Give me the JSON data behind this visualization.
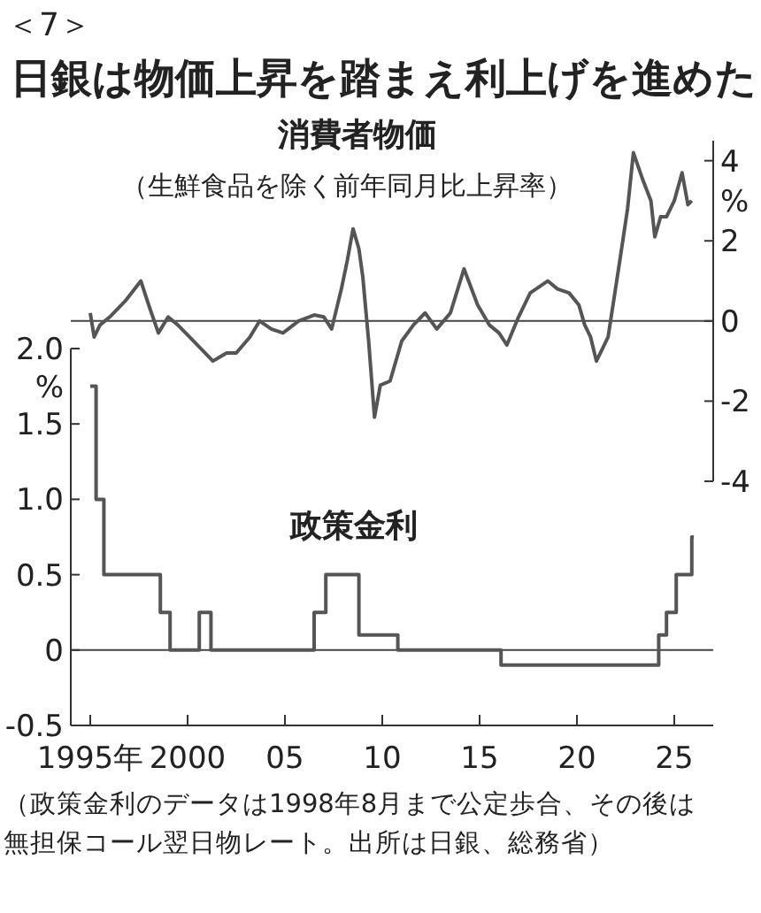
{
  "chart_data": [
    {
      "type": "line",
      "title": "日銀は物価上昇を踏まえ利上げを進めた",
      "subtitle": "消費者物価",
      "annotations": [
        "＜7＞",
        "（生鮮食品を除く前年同月比上昇率）"
      ],
      "ylabel": "%",
      "xlim": [
        1994,
        2027
      ],
      "ylim": [
        -4,
        4.5
      ],
      "yticks": [
        -4,
        -2,
        0,
        2,
        4
      ],
      "tick_labels": "y",
      "ref_lines": [
        {
          "axis": "y",
          "value": 0
        }
      ],
      "series": [
        {
          "color": "#555555",
          "x": [
            1995.0,
            1995.2,
            1995.5,
            1996.0,
            1996.8,
            1997.6,
            1998.0,
            1998.5,
            1999.0,
            1999.5,
            2000.3,
            2001.3,
            2002.0,
            2002.5,
            2003.2,
            2003.7,
            2004.3,
            2004.9,
            2005.7,
            2006.5,
            2007.0,
            2007.4,
            2007.9,
            2008.2,
            2008.5,
            2008.8,
            2009.0,
            2009.3,
            2009.6,
            2009.9,
            2010.4,
            2011.0,
            2011.6,
            2012.2,
            2012.8,
            2013.5,
            2014.2,
            2014.9,
            2015.5,
            2016.0,
            2016.4,
            2017.0,
            2017.6,
            2018.5,
            2019.0,
            2019.6,
            2020.1,
            2020.4,
            2020.7,
            2021.0,
            2021.3,
            2021.6,
            2022.2,
            2022.6,
            2022.9,
            2023.4,
            2023.8,
            2024.0,
            2024.3,
            2024.6,
            2025.0,
            2025.4,
            2025.7,
            2025.9
          ],
          "values": [
            0.2,
            -0.4,
            -0.1,
            0.1,
            0.5,
            1.0,
            0.4,
            -0.3,
            0.1,
            -0.1,
            -0.5,
            -1.0,
            -0.8,
            -0.8,
            -0.4,
            0.0,
            -0.2,
            -0.3,
            0.0,
            0.15,
            0.1,
            -0.2,
            0.8,
            1.5,
            2.3,
            1.8,
            1.1,
            -0.5,
            -2.4,
            -1.6,
            -1.5,
            -0.5,
            -0.1,
            0.2,
            -0.2,
            0.2,
            1.3,
            0.4,
            -0.1,
            -0.3,
            -0.6,
            0.1,
            0.7,
            1.0,
            0.8,
            0.7,
            0.4,
            -0.1,
            -0.4,
            -1.0,
            -0.7,
            -0.4,
            1.5,
            2.8,
            4.2,
            3.5,
            3.0,
            2.1,
            2.6,
            2.6,
            3.0,
            3.7,
            2.9,
            3.0
          ]
        }
      ]
    },
    {
      "type": "step",
      "title": "政策金利",
      "annotations": [
        "（政策金利のデータは1998年8月まで公定歩合、その後は無担保コール翌日物レート。出所は日銀、総務省）"
      ],
      "ylabel": "%",
      "xlim": [
        1994,
        2027
      ],
      "ylim": [
        -0.5,
        2.0
      ],
      "xticks": [
        {
          "value": 1995,
          "label": "1995年"
        },
        2000,
        {
          "value": 2005,
          "label": "05"
        },
        {
          "value": 2010,
          "label": "10"
        },
        {
          "value": 2015,
          "label": "15"
        },
        {
          "value": 2020,
          "label": "20"
        },
        {
          "value": 2025,
          "label": "25"
        }
      ],
      "yticks": [
        -0.5,
        0,
        0.5,
        {
          "value": 1,
          "label": "1.0"
        },
        1.5,
        {
          "value": 2,
          "label": "2.0"
        }
      ],
      "ref_lines": [
        {
          "axis": "y",
          "value": 0
        }
      ],
      "series": [
        {
          "color": "#555555",
          "x": [
            1995.0,
            1995.3,
            1995.7,
            1998.6,
            1999.1,
            2000.6,
            2001.2,
            2006.5,
            2007.1,
            2008.8,
            2010.8,
            2016.1,
            2024.2,
            2024.6,
            2025.1,
            2025.9,
            2026.0
          ],
          "values": [
            1.75,
            1.0,
            0.5,
            0.25,
            0.0,
            0.25,
            0.0,
            0.25,
            0.5,
            0.1,
            0.0,
            -0.1,
            0.1,
            0.25,
            0.5,
            0.75,
            0.75
          ]
        }
      ]
    }
  ]
}
